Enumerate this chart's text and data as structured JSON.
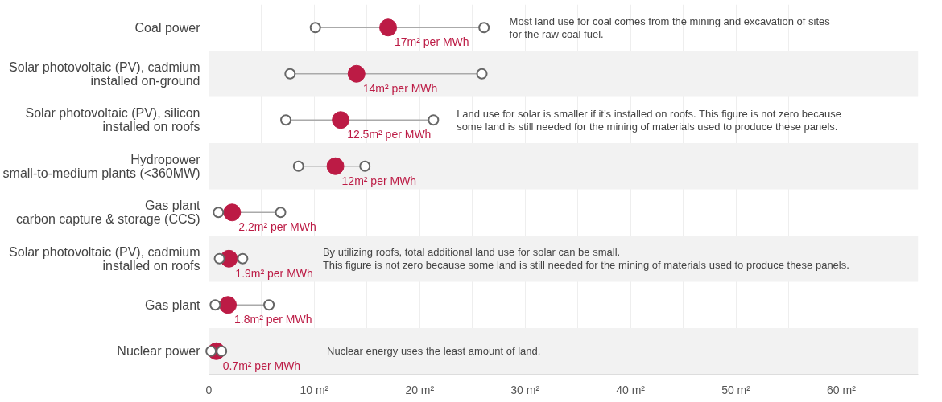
{
  "chart_data": {
    "type": "scatter",
    "orientation": "horizontal",
    "categories": [
      "Coal power",
      "Solar photovoltaic (PV), cadmium\ninstalled on-ground",
      "Solar photovoltaic (PV), silicon\ninstalled on roofs",
      "Hydropower\nsmall-to-medium plants (<360MW)",
      "Gas plant\ncarbon capture & storage (CCS)",
      "Solar photovoltaic (PV), cadmium\ninstalled on roofs",
      "Gas plant",
      "Nuclear power"
    ],
    "series": [
      {
        "color": "#ffffff",
        "values": [
          10.1,
          7.7,
          7.3,
          8.5,
          0.9,
          1.0,
          0.6,
          0.2
        ]
      },
      {
        "color": "#ffffff",
        "values": [
          26.1,
          25.9,
          21.3,
          14.8,
          6.8,
          3.2,
          5.7,
          1.2
        ]
      },
      {
        "color": "#bc1b45",
        "values": [
          17,
          14,
          12.5,
          12,
          2.2,
          1.9,
          1.8,
          0.7
        ],
        "value_labels": [
          "17m² per MWh",
          "14m² per MWh",
          "12.5m² per MWh",
          "12m² per MWh",
          "2.2m² per MWh",
          "1.9m² per MWh",
          "1.8m² per MWh",
          "0.7m² per MWh"
        ]
      }
    ],
    "marker": "circle",
    "xlim": [
      0,
      67.3
    ],
    "xticks": [
      0,
      {
        "value": 10,
        "label": "10 m²"
      },
      {
        "value": 20,
        "label": "20 m²"
      },
      {
        "value": 30,
        "label": "30 m²"
      },
      {
        "value": 40,
        "label": "40 m²"
      },
      {
        "value": 50,
        "label": "50 m²"
      },
      {
        "value": 60,
        "label": "60 m²"
      }
    ],
    "grid": "x",
    "annotations": [
      "Most land use for coal comes from the mining and excavation of sites\nfor the raw coal fuel.",
      "Land use for solar is smaller if it’s installed on roofs. This figure is not zero because\nsome land is still needed for the mining of materials used to produce these panels.",
      "By utilizing roofs, total additional land use for solar can be small.\nThis figure is not zero because some land is still needed for the mining of materials used to produce these panels.",
      "Nuclear energy uses the least amount of land."
    ]
  }
}
